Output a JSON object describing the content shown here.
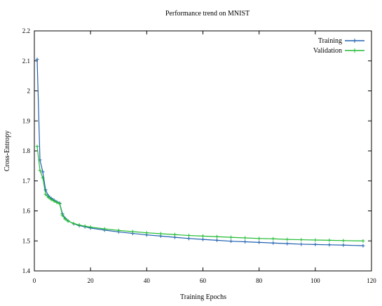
{
  "chart_data": {
    "type": "line",
    "title": "Performance trend on MNIST",
    "xlabel": "Training Epochs",
    "ylabel": "Cross-Entropy",
    "xlim": [
      0,
      120
    ],
    "ylim": [
      1.4,
      2.2
    ],
    "x_ticks": [
      0,
      20,
      40,
      60,
      80,
      100,
      120
    ],
    "y_ticks": [
      1.4,
      1.5,
      1.6,
      1.7,
      1.8,
      1.9,
      2,
      2.1,
      2.2
    ],
    "grid": false,
    "legend_position": "top-right",
    "series": [
      {
        "name": "Training",
        "color": "#2060b0",
        "marker": "plus",
        "points": [
          [
            1,
            2.105
          ],
          [
            2,
            1.77
          ],
          [
            3,
            1.73
          ],
          [
            4,
            1.67
          ],
          [
            5,
            1.65
          ],
          [
            6,
            1.642
          ],
          [
            7,
            1.636
          ],
          [
            8,
            1.63
          ],
          [
            9,
            1.626
          ],
          [
            10,
            1.59
          ],
          [
            11,
            1.575
          ],
          [
            12,
            1.567
          ],
          [
            14,
            1.557
          ],
          [
            16,
            1.551
          ],
          [
            18,
            1.547
          ],
          [
            20,
            1.543
          ],
          [
            25,
            1.536
          ],
          [
            30,
            1.53
          ],
          [
            35,
            1.525
          ],
          [
            40,
            1.52
          ],
          [
            45,
            1.516
          ],
          [
            50,
            1.512
          ],
          [
            55,
            1.508
          ],
          [
            60,
            1.505
          ],
          [
            65,
            1.502
          ],
          [
            70,
            1.499
          ],
          [
            75,
            1.497
          ],
          [
            80,
            1.495
          ],
          [
            85,
            1.493
          ],
          [
            90,
            1.491
          ],
          [
            95,
            1.489
          ],
          [
            100,
            1.488
          ],
          [
            105,
            1.487
          ],
          [
            110,
            1.486
          ],
          [
            117,
            1.484
          ]
        ]
      },
      {
        "name": "Validation",
        "color": "#22bb33",
        "marker": "plus",
        "points": [
          [
            1,
            1.815
          ],
          [
            2,
            1.735
          ],
          [
            3,
            1.71
          ],
          [
            4,
            1.655
          ],
          [
            5,
            1.645
          ],
          [
            6,
            1.638
          ],
          [
            7,
            1.633
          ],
          [
            8,
            1.628
          ],
          [
            9,
            1.624
          ],
          [
            10,
            1.585
          ],
          [
            11,
            1.573
          ],
          [
            12,
            1.566
          ],
          [
            14,
            1.558
          ],
          [
            16,
            1.553
          ],
          [
            18,
            1.549
          ],
          [
            20,
            1.546
          ],
          [
            25,
            1.54
          ],
          [
            30,
            1.535
          ],
          [
            35,
            1.531
          ],
          [
            40,
            1.527
          ],
          [
            45,
            1.524
          ],
          [
            50,
            1.521
          ],
          [
            55,
            1.518
          ],
          [
            60,
            1.516
          ],
          [
            65,
            1.514
          ],
          [
            70,
            1.512
          ],
          [
            75,
            1.51
          ],
          [
            80,
            1.508
          ],
          [
            85,
            1.507
          ],
          [
            90,
            1.505
          ],
          [
            95,
            1.504
          ],
          [
            100,
            1.503
          ],
          [
            105,
            1.502
          ],
          [
            110,
            1.501
          ],
          [
            117,
            1.5
          ]
        ]
      }
    ]
  }
}
